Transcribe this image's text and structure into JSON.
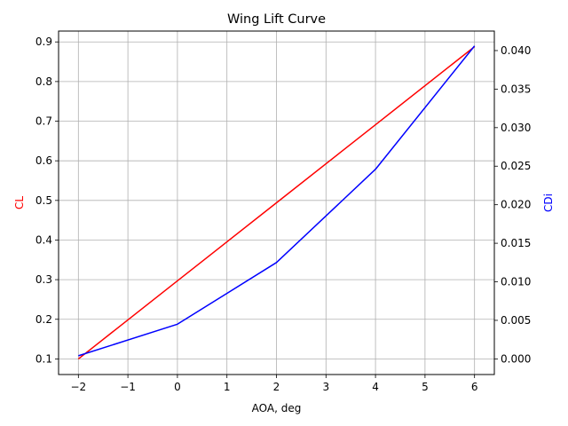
{
  "chart_data": {
    "type": "line",
    "title": "Wing Lift Curve",
    "xlabel": "AOA, deg",
    "ylabel": "CL",
    "y2label": "CDi",
    "xlim": [
      -2.4,
      6.4
    ],
    "ylim": [
      0.0606,
      0.9274
    ],
    "y2lim": [
      -0.00203,
      0.04253
    ],
    "grid": true,
    "x_ticks": [
      "−2",
      "−1",
      "0",
      "1",
      "2",
      "3",
      "4",
      "5",
      "6"
    ],
    "y_ticks": [
      "0.1",
      "0.2",
      "0.3",
      "0.4",
      "0.5",
      "0.6",
      "0.7",
      "0.8",
      "0.9"
    ],
    "y2_ticks": [
      "0.000",
      "0.005",
      "0.010",
      "0.015",
      "0.020",
      "0.025",
      "0.030",
      "0.035",
      "0.040"
    ],
    "x_tick_values": [
      -2,
      -1,
      0,
      1,
      2,
      3,
      4,
      5,
      6
    ],
    "y_tick_values": [
      0.1,
      0.2,
      0.3,
      0.4,
      0.5,
      0.6,
      0.7,
      0.8,
      0.9
    ],
    "y2_tick_values": [
      0,
      0.005,
      0.01,
      0.015,
      0.02,
      0.025,
      0.03,
      0.035,
      0.04
    ],
    "series": [
      {
        "axis": "left",
        "color": "#ff0000",
        "x": [
          -2,
          0,
          2,
          4,
          6
        ],
        "values": [
          0.1,
          0.297,
          0.494,
          0.691,
          0.888
        ]
      },
      {
        "axis": "right",
        "color": "#0000ff",
        "x": [
          -2,
          0,
          2,
          4,
          6
        ],
        "values": [
          0.0004,
          0.0045,
          0.0125,
          0.0246,
          0.0406
        ]
      }
    ],
    "ylabel_color": "#ff0000",
    "y2label_color": "#0000ff",
    "grid_color": "#b0b0b0"
  }
}
